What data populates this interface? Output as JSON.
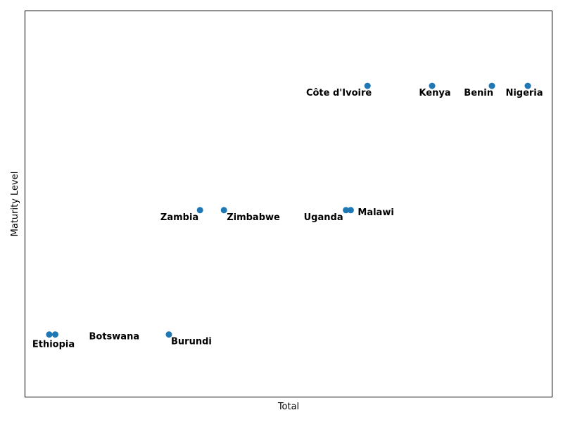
{
  "chart_data": {
    "type": "scatter",
    "xlabel": "Total",
    "ylabel": "Maturity Level",
    "x_ticks_visible": false,
    "y_ticks_visible": false,
    "grid": false,
    "legend": "none",
    "xlim": [
      0.0,
      22.0
    ],
    "ylim": [
      0.5,
      3.6
    ],
    "marker_color": "#1f77b4",
    "points": [
      {
        "label": "Ethiopia",
        "x": 1.0,
        "y": 1
      },
      {
        "label": "Botswana",
        "x": 1.25,
        "y": 1
      },
      {
        "label": "Burundi",
        "x": 6.0,
        "y": 1
      },
      {
        "label": "Zambia",
        "x": 7.3,
        "y": 2
      },
      {
        "label": "Zimbabwe",
        "x": 8.3,
        "y": 2
      },
      {
        "label": "Uganda",
        "x": 13.4,
        "y": 2
      },
      {
        "label": "Malawi",
        "x": 13.6,
        "y": 2
      },
      {
        "label": "Côte d'Ivoire",
        "x": 14.3,
        "y": 3
      },
      {
        "label": "Kenya",
        "x": 17.0,
        "y": 3
      },
      {
        "label": "Benin",
        "x": 19.5,
        "y": 3
      },
      {
        "label": "Nigeria",
        "x": 21.0,
        "y": 3
      }
    ]
  }
}
